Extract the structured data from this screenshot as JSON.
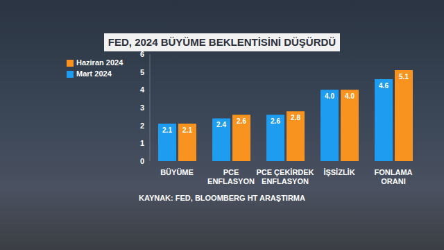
{
  "chart_data": {
    "type": "bar",
    "title": "FED, 2024 BÜYÜME BEKLENTİSİNİ DÜŞÜRDÜ",
    "subtitle": "KAYNAK: FED, BLOOMBERG HT ARAŞTIRMA",
    "categories": [
      "BÜYÜME",
      "PCE ENFLASYON",
      "PCE ÇEKİRDEK ENFLASYON",
      "İŞSİZLİK",
      "FONLAMA ORANI"
    ],
    "series": [
      {
        "name": "Mart 2024",
        "color": "#1e9cf0",
        "values": [
          2.1,
          2.4,
          2.6,
          4.0,
          4.6
        ],
        "value_labels": [
          "2.1",
          "2.4",
          "2.6",
          "4.0",
          "4.6"
        ]
      },
      {
        "name": "Haziran 2024",
        "color": "#f7931e",
        "values": [
          2.1,
          2.6,
          2.8,
          4.0,
          5.1
        ],
        "value_labels": [
          "2.1",
          "2.6",
          "2.8",
          "4.0",
          "5.1"
        ]
      }
    ],
    "ylim": [
      0,
      6
    ],
    "yticks": [
      0,
      1,
      2,
      3,
      4,
      5,
      6
    ],
    "grid": false,
    "legend": "upper left",
    "data_labels": true
  }
}
